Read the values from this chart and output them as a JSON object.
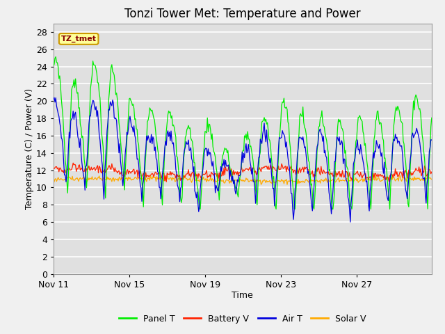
{
  "title": "Tonzi Tower Met: Temperature and Power",
  "xlabel": "Time",
  "ylabel": "Temperature (C) / Power (V)",
  "ylim": [
    0,
    29
  ],
  "yticks": [
    0,
    2,
    4,
    6,
    8,
    10,
    12,
    14,
    16,
    18,
    20,
    22,
    24,
    26,
    28
  ],
  "xtick_labels": [
    "Nov 11",
    "Nov 15",
    "Nov 19",
    "Nov 23",
    "Nov 27"
  ],
  "xtick_positions": [
    0,
    96,
    192,
    288,
    384
  ],
  "n_points": 480,
  "legend_labels": [
    "Panel T",
    "Battery V",
    "Air T",
    "Solar V"
  ],
  "legend_colors": [
    "#00ee00",
    "#ff2200",
    "#0000dd",
    "#ffaa00"
  ],
  "annotation_text": "TZ_tmet",
  "annotation_color": "#880000",
  "annotation_bg": "#ffff99",
  "annotation_border": "#cc9900",
  "fig_bg_color": "#f0f0f0",
  "plot_bg_color": "#e0e0e0",
  "grid_color": "#ffffff",
  "title_fontsize": 12,
  "axis_fontsize": 9,
  "tick_fontsize": 9
}
